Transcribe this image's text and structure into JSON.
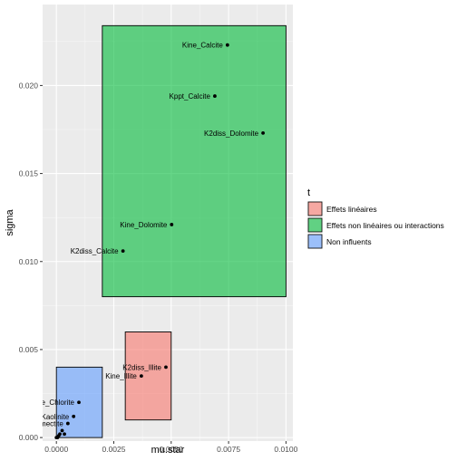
{
  "chart_data": {
    "type": "scatter",
    "xlabel": "mu.star",
    "ylabel": "sigma",
    "xlim": [
      -0.0006,
      0.0103
    ],
    "ylim": [
      -0.0002,
      0.0246
    ],
    "x_ticks": [
      0.0,
      0.0025,
      0.005,
      0.0075,
      0.01
    ],
    "x_tick_labels": [
      "0.0000",
      "0.0025",
      "0.0050",
      "0.0075",
      "0.0100"
    ],
    "y_ticks": [
      0.0,
      0.005,
      0.01,
      0.015,
      0.02
    ],
    "y_tick_labels": [
      "0.000",
      "0.005",
      "0.010",
      "0.015",
      "0.020"
    ],
    "grid": true,
    "legend": {
      "title": "t",
      "position": "right",
      "entries": [
        {
          "label": "Effets linéaires",
          "color": "#f8766d"
        },
        {
          "label": "Effets non linéaires ou interactions",
          "color": "#00ba38"
        },
        {
          "label": "Non influents",
          "color": "#619cff"
        }
      ]
    },
    "rects": [
      {
        "group": "Effets linéaires",
        "color": "#f8766d",
        "x0": 0.003,
        "x1": 0.005,
        "y0": 0.001,
        "y1": 0.006
      },
      {
        "group": "Effets non linéaires ou interactions",
        "color": "#00ba38",
        "x0": 0.002,
        "x1": 0.01,
        "y0": 0.008,
        "y1": 0.0234
      },
      {
        "group": "Non influents",
        "color": "#619cff",
        "x0": 0.0,
        "x1": 0.002,
        "y0": 0.0,
        "y1": 0.004
      }
    ],
    "points": [
      {
        "label": "Kine_Calcite",
        "x": 0.00745,
        "y": 0.0223
      },
      {
        "label": "Kppt_Calcite",
        "x": 0.0069,
        "y": 0.0194
      },
      {
        "label": "K2diss_Dolomite",
        "x": 0.009,
        "y": 0.0173
      },
      {
        "label": "Kine_Dolomite",
        "x": 0.00502,
        "y": 0.0121
      },
      {
        "label": "K2diss_Calcite",
        "x": 0.0029,
        "y": 0.0106
      },
      {
        "label": "K2diss_Illite",
        "x": 0.00477,
        "y": 0.004
      },
      {
        "label": "Kine_Illite",
        "x": 0.0037,
        "y": 0.0035
      },
      {
        "label": "Kine_Chlorite",
        "x": 0.00098,
        "y": 0.002
      },
      {
        "label": "Kine_Kaolinite",
        "x": 0.00075,
        "y": 0.0012
      },
      {
        "label": "Kine_Smectite",
        "x": 0.0005,
        "y": 0.0008
      },
      {
        "label": "",
        "x": 0.00025,
        "y": 0.0004
      },
      {
        "label": "",
        "x": 0.00035,
        "y": 0.0002
      },
      {
        "label": "",
        "x": 0.00015,
        "y": 0.0002
      },
      {
        "label": "",
        "x": 0.0001,
        "y": 0.0001
      },
      {
        "label": "",
        "x": 5e-05,
        "y": 0.0
      },
      {
        "label": "",
        "x": 0.0,
        "y": 0.0
      }
    ]
  }
}
